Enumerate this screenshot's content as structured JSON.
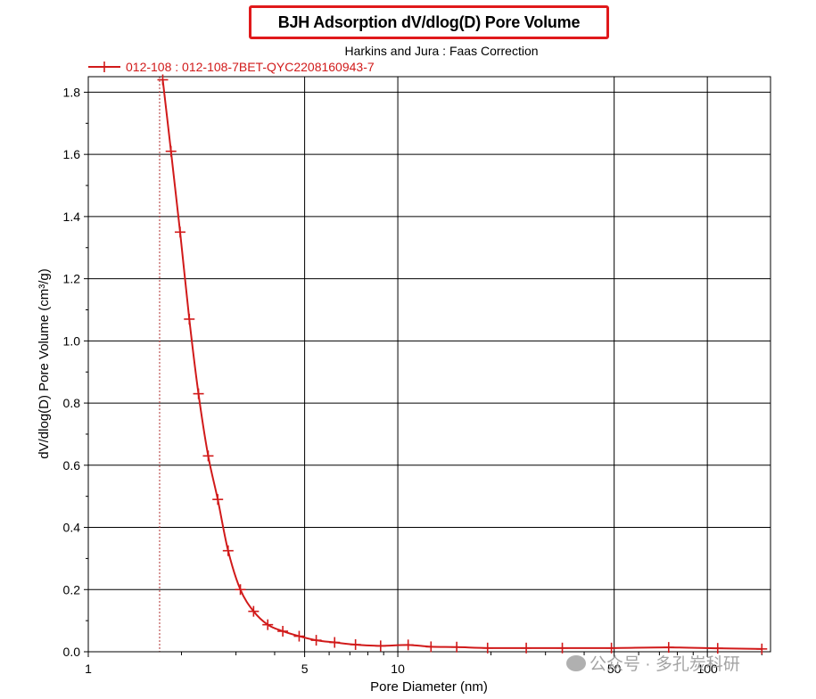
{
  "chart_data": {
    "type": "line",
    "title": "BJH Adsorption dV/dlog(D) Pore Volume",
    "subtitle": "Harkins and Jura : Faas Correction",
    "xlabel": "Pore Diameter (nm)",
    "ylabel": "dV/dlog(D) Pore Volume (cm³/g)",
    "x_scale": "log",
    "xlim": [
      1,
      160
    ],
    "ylim": [
      0,
      1.85
    ],
    "x_ticks": [
      1,
      5,
      10,
      50,
      100
    ],
    "y_ticks": [
      0.0,
      0.2,
      0.4,
      0.6,
      0.8,
      1.0,
      1.2,
      1.4,
      1.6,
      1.8
    ],
    "y_tick_labels": [
      "0.0",
      "0.2",
      "0.4",
      "0.6",
      "0.8",
      "1.0",
      "1.2",
      "1.4",
      "1.6",
      "1.8"
    ],
    "grid": true,
    "legend_position": "top-left",
    "reference_line_x": 1.7,
    "colors": {
      "series": "#d11a1a",
      "title_border": "#e0191b",
      "grid": "#000000"
    },
    "series": [
      {
        "name": "012-108 : 012-108-7BET-QYC2208160943-7",
        "x": [
          1.74,
          1.85,
          1.98,
          2.12,
          2.27,
          2.44,
          2.62,
          2.83,
          3.1,
          3.42,
          3.8,
          4.25,
          4.8,
          5.45,
          6.25,
          7.3,
          8.8,
          10.8,
          12.8,
          15.5,
          19.5,
          26.0,
          34.0,
          49.0,
          75.0,
          108,
          150
        ],
        "y": [
          1.84,
          1.61,
          1.35,
          1.07,
          0.83,
          0.63,
          0.49,
          0.325,
          0.2,
          0.13,
          0.087,
          0.066,
          0.05,
          0.037,
          0.03,
          0.023,
          0.019,
          0.022,
          0.016,
          0.015,
          0.012,
          0.012,
          0.012,
          0.012,
          0.014,
          0.011,
          0.009
        ]
      }
    ]
  },
  "watermark": {
    "text": "公众号 · 多孔炭科研",
    "logo_icon": "wechat-icon"
  }
}
